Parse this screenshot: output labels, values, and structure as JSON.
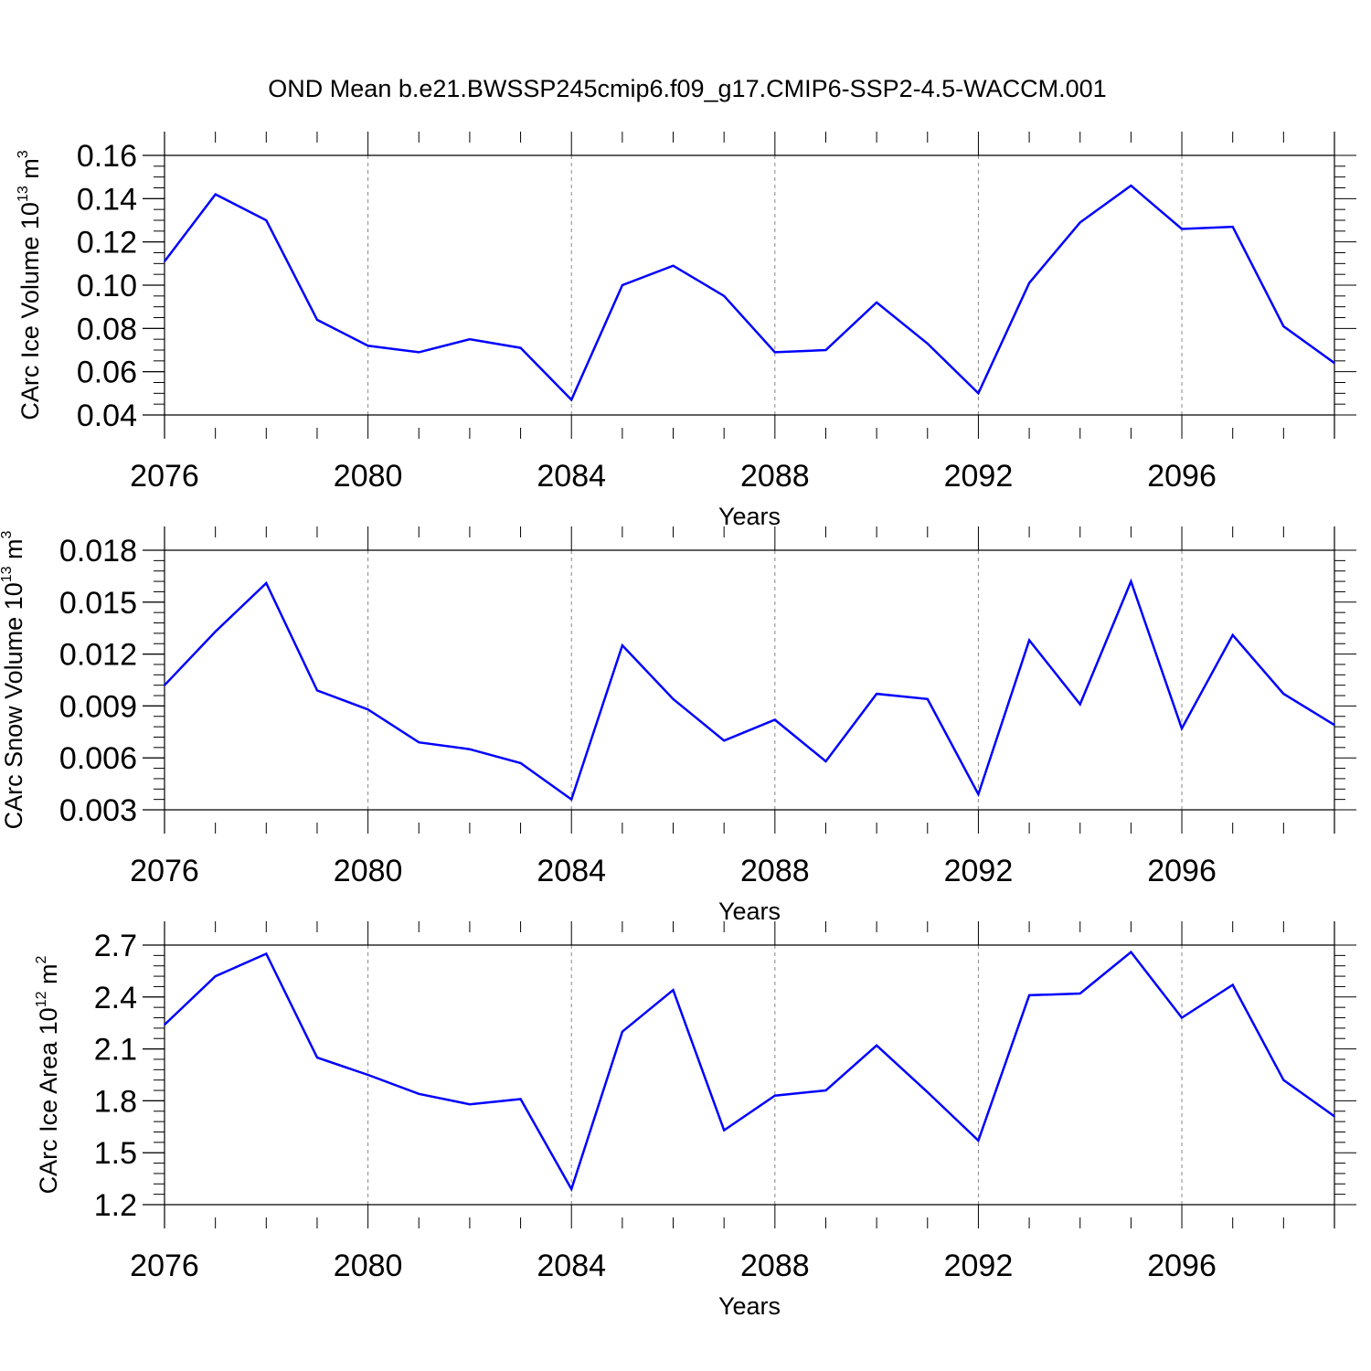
{
  "title": "OND Mean b.e21.BWSSP245cmip6.f09_g17.CMIP6-SSP2-4.5-WACCM.001",
  "colors": {
    "line": "#0000ff",
    "axis": "#000000",
    "grid": "#888888"
  },
  "chart_data": [
    {
      "type": "line",
      "ylabel_main": "CArc Ice Volume 10",
      "ylabel_exp": "13",
      "ylabel_unit": " m",
      "ylabel_unit_exp": "3",
      "xlabel": "Years",
      "xlim": [
        2076,
        2099
      ],
      "ylim": [
        0.04,
        0.16
      ],
      "x_ticks": [
        2076,
        2080,
        2084,
        2088,
        2092,
        2096
      ],
      "x_tick_labels": [
        "2076",
        "2080",
        "2084",
        "2088",
        "2092",
        "2096"
      ],
      "y_ticks": [
        0.04,
        0.06,
        0.08,
        0.1,
        0.12,
        0.14,
        0.16
      ],
      "y_tick_labels": [
        "0.04",
        "0.06",
        "0.08",
        "0.10",
        "0.12",
        "0.14",
        "0.16"
      ],
      "y_minor_step": 0.005,
      "x": [
        2076,
        2077,
        2078,
        2079,
        2080,
        2081,
        2082,
        2083,
        2084,
        2085,
        2086,
        2087,
        2088,
        2089,
        2090,
        2091,
        2092,
        2093,
        2094,
        2095,
        2096,
        2097,
        2098,
        2099
      ],
      "values": [
        0.111,
        0.142,
        0.13,
        0.084,
        0.072,
        0.069,
        0.075,
        0.071,
        0.047,
        0.1,
        0.109,
        0.095,
        0.069,
        0.07,
        0.092,
        0.073,
        0.05,
        0.101,
        0.129,
        0.146,
        0.126,
        0.127,
        0.081,
        0.064
      ]
    },
    {
      "type": "line",
      "ylabel_main": "CArc Snow Volume 10",
      "ylabel_exp": "13",
      "ylabel_unit": " m",
      "ylabel_unit_exp": "3",
      "xlabel": "Years",
      "xlim": [
        2076,
        2099
      ],
      "ylim": [
        0.003,
        0.018
      ],
      "x_ticks": [
        2076,
        2080,
        2084,
        2088,
        2092,
        2096
      ],
      "x_tick_labels": [
        "2076",
        "2080",
        "2084",
        "2088",
        "2092",
        "2096"
      ],
      "y_ticks": [
        0.003,
        0.006,
        0.009,
        0.012,
        0.015,
        0.018
      ],
      "y_tick_labels": [
        "0.003",
        "0.006",
        "0.009",
        "0.012",
        "0.015",
        "0.018"
      ],
      "y_minor_step": 0.0006,
      "x": [
        2076,
        2077,
        2078,
        2079,
        2080,
        2081,
        2082,
        2083,
        2084,
        2085,
        2086,
        2087,
        2088,
        2089,
        2090,
        2091,
        2092,
        2093,
        2094,
        2095,
        2096,
        2097,
        2098,
        2099
      ],
      "values": [
        0.0102,
        0.0133,
        0.0161,
        0.0099,
        0.0088,
        0.0069,
        0.0065,
        0.0057,
        0.0036,
        0.0125,
        0.0094,
        0.007,
        0.0082,
        0.0058,
        0.0097,
        0.0094,
        0.0039,
        0.0128,
        0.0091,
        0.0162,
        0.0077,
        0.0131,
        0.0097,
        0.0079
      ]
    },
    {
      "type": "line",
      "ylabel_main": "CArc Ice Area 10",
      "ylabel_exp": "12",
      "ylabel_unit": " m",
      "ylabel_unit_exp": "2",
      "xlabel": "Years",
      "xlim": [
        2076,
        2099
      ],
      "ylim": [
        1.2,
        2.7
      ],
      "x_ticks": [
        2076,
        2080,
        2084,
        2088,
        2092,
        2096
      ],
      "x_tick_labels": [
        "2076",
        "2080",
        "2084",
        "2088",
        "2092",
        "2096"
      ],
      "y_ticks": [
        1.2,
        1.5,
        1.8,
        2.1,
        2.4,
        2.7
      ],
      "y_tick_labels": [
        "1.2",
        "1.5",
        "1.8",
        "2.1",
        "2.4",
        "2.7"
      ],
      "y_minor_step": 0.06,
      "x": [
        2076,
        2077,
        2078,
        2079,
        2080,
        2081,
        2082,
        2083,
        2084,
        2085,
        2086,
        2087,
        2088,
        2089,
        2090,
        2091,
        2092,
        2093,
        2094,
        2095,
        2096,
        2097,
        2098,
        2099
      ],
      "values": [
        2.24,
        2.52,
        2.65,
        2.05,
        1.95,
        1.84,
        1.78,
        1.81,
        1.29,
        2.2,
        2.44,
        1.63,
        1.83,
        1.86,
        2.12,
        1.85,
        1.57,
        2.41,
        2.42,
        2.66,
        2.28,
        2.47,
        1.92,
        1.71
      ]
    }
  ]
}
